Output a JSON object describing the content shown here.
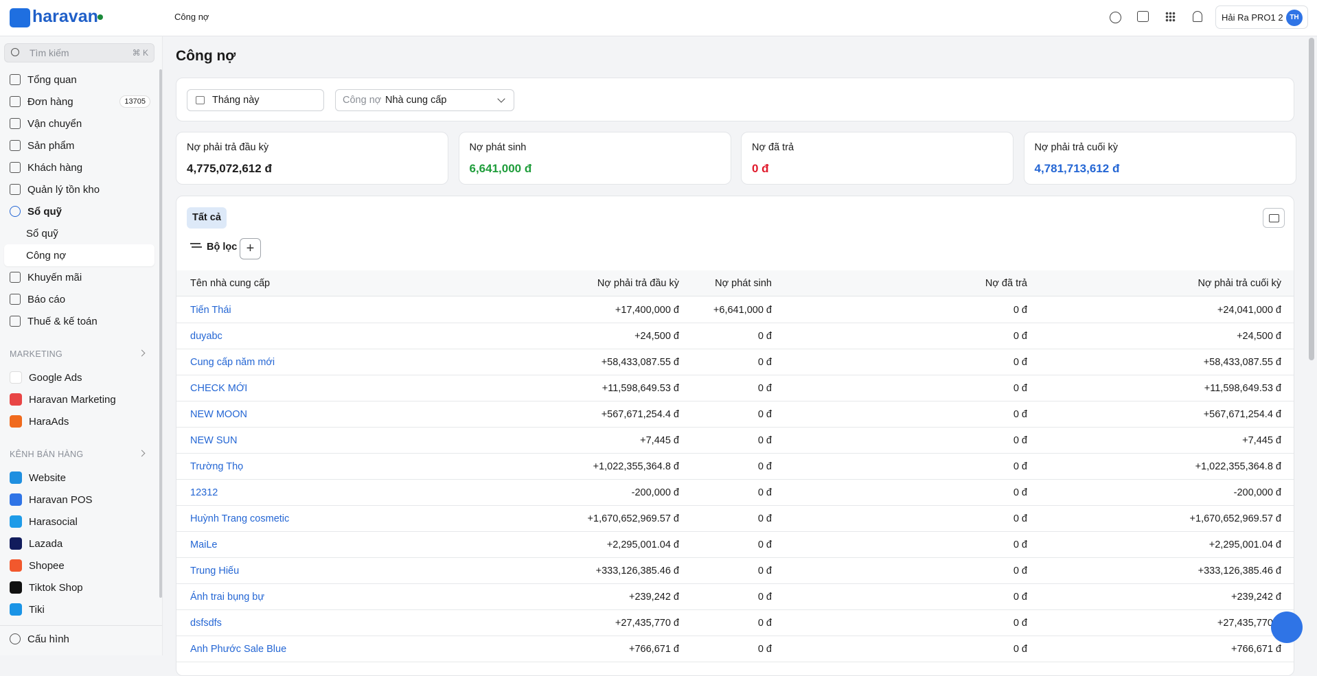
{
  "header": {
    "logo": "haravan",
    "breadcrumb": "Công nợ",
    "user": "Hải Ra PRO1 2",
    "avatar": "TH"
  },
  "sidebar": {
    "search": "Tìm kiếm",
    "shortcut": "⌘ K",
    "nav": [
      {
        "label": "Tổng quan"
      },
      {
        "label": "Đơn hàng",
        "badge": "13705"
      },
      {
        "label": "Vận chuyển"
      },
      {
        "label": "Sản phẩm"
      },
      {
        "label": "Khách hàng"
      },
      {
        "label": "Quản lý tồn kho"
      },
      {
        "label": "Sổ quỹ",
        "children": [
          "Sổ quỹ",
          "Công nợ"
        ]
      },
      {
        "label": "Khuyến mãi"
      },
      {
        "label": "Báo cáo"
      },
      {
        "label": "Thuế & kế toán"
      }
    ],
    "marketing": {
      "title": "MARKETING",
      "items": [
        "Google Ads",
        "Haravan Marketing",
        "HaraAds"
      ]
    },
    "sales": {
      "title": "KÊNH BÁN HÀNG",
      "items": [
        "Website",
        "Haravan POS",
        "Harasocial",
        "Lazada",
        "Shopee",
        "Tiktok Shop",
        "Tiki"
      ]
    },
    "settings": "Cấu hình"
  },
  "page": {
    "title": "Công nợ",
    "period": "Tháng này",
    "filter_label": "Công nợ",
    "filter_value": "Nhà cung cấp",
    "cards": [
      {
        "label": "Nợ phải trả đầu kỳ",
        "value": "4,775,072,612 đ"
      },
      {
        "label": "Nợ phát sinh",
        "value": "6,641,000 đ"
      },
      {
        "label": "Nợ đã trả",
        "value": "0 đ"
      },
      {
        "label": "Nợ phải trả cuối kỳ",
        "value": "4,781,713,612 đ"
      }
    ],
    "tab": "Tất cả",
    "filter_button": "Bộ lọc"
  },
  "table": {
    "columns": [
      "Tên nhà cung cấp",
      "Nợ phải trả đầu kỳ",
      "Nợ phát sinh",
      "Nợ đã trả",
      "Nợ phải trả cuối kỳ"
    ],
    "rows": [
      [
        "Tiến Thái",
        "+17,400,000 đ",
        "+6,641,000 đ",
        "0 đ",
        "+24,041,000 đ"
      ],
      [
        "duyabc",
        "+24,500 đ",
        "0 đ",
        "0 đ",
        "+24,500 đ"
      ],
      [
        "Cung cấp năm mới",
        "+58,433,087.55 đ",
        "0 đ",
        "0 đ",
        "+58,433,087.55 đ"
      ],
      [
        "CHECK MỚI",
        "+11,598,649.53 đ",
        "0 đ",
        "0 đ",
        "+11,598,649.53 đ"
      ],
      [
        "NEW MOON",
        "+567,671,254.4 đ",
        "0 đ",
        "0 đ",
        "+567,671,254.4 đ"
      ],
      [
        "NEW SUN",
        "+7,445 đ",
        "0 đ",
        "0 đ",
        "+7,445 đ"
      ],
      [
        "Trường Thọ",
        "+1,022,355,364.8 đ",
        "0 đ",
        "0 đ",
        "+1,022,355,364.8 đ"
      ],
      [
        "12312",
        "-200,000 đ",
        "0 đ",
        "0 đ",
        "-200,000 đ"
      ],
      [
        "Huỳnh Trang cosmetic",
        "+1,670,652,969.57 đ",
        "0 đ",
        "0 đ",
        "+1,670,652,969.57 đ"
      ],
      [
        "MaiLe",
        "+2,295,001.04 đ",
        "0 đ",
        "0 đ",
        "+2,295,001.04 đ"
      ],
      [
        "Trung Hiếu",
        "+333,126,385.46 đ",
        "0 đ",
        "0 đ",
        "+333,126,385.46 đ"
      ],
      [
        "Ánh trai bụng bự",
        "+239,242 đ",
        "0 đ",
        "0 đ",
        "+239,242 đ"
      ],
      [
        "dsfsdfs",
        "+27,435,770 đ",
        "0 đ",
        "0 đ",
        "+27,435,770 đ"
      ],
      [
        "Anh Phước Sale Blue",
        "+766,671 đ",
        "0 đ",
        "0 đ",
        "+766,671 đ"
      ]
    ]
  }
}
